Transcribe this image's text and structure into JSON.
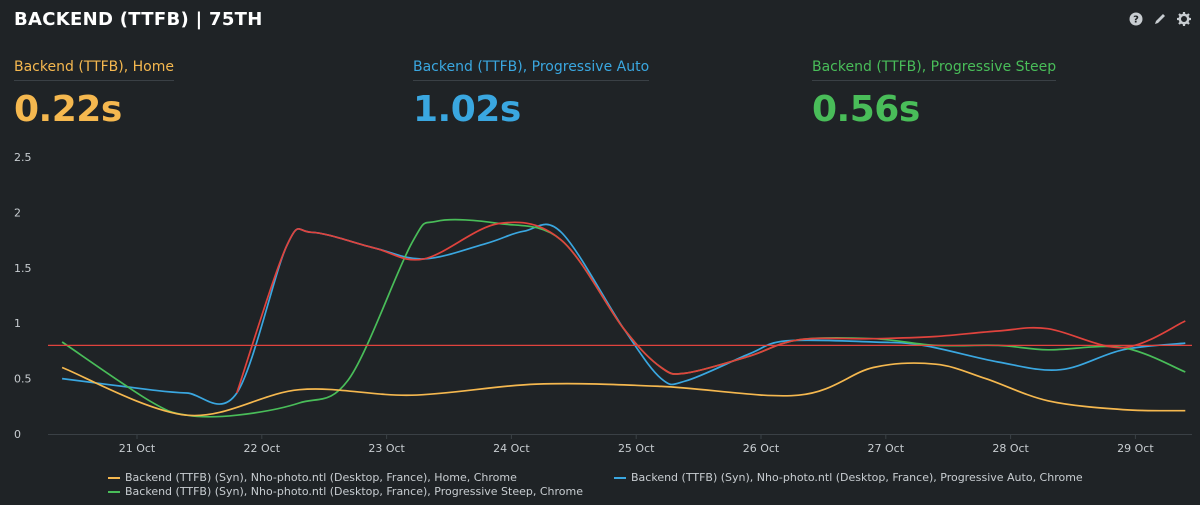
{
  "header": {
    "title": "BACKEND (TTFB) | 75TH",
    "icons": [
      "help-icon",
      "pencil-icon",
      "gear-icon"
    ]
  },
  "metrics": [
    {
      "label": "Backend (TTFB), Home",
      "value": "0.22s",
      "color": "#f5b84f"
    },
    {
      "label": "Backend (TTFB), Progressive Auto",
      "value": "1.02s",
      "color": "#3aa7e0"
    },
    {
      "label": "Backend (TTFB), Progressive Steep",
      "value": "0.56s",
      "color": "#49bd59"
    }
  ],
  "chart_data": {
    "type": "line",
    "x": [
      "21 Oct",
      "22 Oct",
      "23 Oct",
      "24 Oct",
      "25 Oct",
      "26 Oct",
      "27 Oct",
      "28 Oct",
      "29 Oct"
    ],
    "ylim": [
      0,
      2.5
    ],
    "yticks": [
      "0",
      "0.5",
      "1",
      "1.5",
      "2",
      "2.5"
    ],
    "threshold": {
      "value": 0.8,
      "color": "#e0433d"
    },
    "grid": false,
    "legend_position": "bottom",
    "series": [
      {
        "name": "Backend (TTFB) (Syn), Nho-photo.ntl (Desktop, France), Home, Chrome",
        "color": "#f5b84f",
        "points": [
          [
            20.4,
            0.6
          ],
          [
            21.4,
            0.17
          ],
          [
            22.3,
            0.4
          ],
          [
            23.2,
            0.35
          ],
          [
            24.2,
            0.45
          ],
          [
            25.2,
            0.43
          ],
          [
            26.3,
            0.35
          ],
          [
            26.9,
            0.6
          ],
          [
            27.4,
            0.63
          ],
          [
            27.8,
            0.5
          ],
          [
            28.3,
            0.3
          ],
          [
            28.9,
            0.22
          ],
          [
            29.4,
            0.21
          ]
        ]
      },
      {
        "name": "Backend (TTFB) (Syn), Nho-photo.ntl (Desktop, France), Progressive Auto, Chrome",
        "color": "#3aa7e0",
        "points": [
          [
            20.4,
            0.5
          ],
          [
            21.1,
            0.4
          ],
          [
            21.4,
            0.37
          ],
          [
            21.8,
            0.37
          ],
          [
            22.2,
            1.7
          ],
          [
            22.4,
            1.82
          ],
          [
            22.9,
            1.68
          ],
          [
            23.3,
            1.58
          ],
          [
            23.8,
            1.72
          ],
          [
            24.1,
            1.83
          ],
          [
            24.4,
            1.82
          ],
          [
            24.9,
            0.95
          ],
          [
            25.2,
            0.5
          ],
          [
            25.4,
            0.48
          ],
          [
            25.9,
            0.72
          ],
          [
            26.2,
            0.84
          ],
          [
            26.9,
            0.83
          ],
          [
            27.3,
            0.8
          ],
          [
            27.9,
            0.65
          ],
          [
            28.4,
            0.58
          ],
          [
            28.9,
            0.76
          ],
          [
            29.4,
            0.82
          ]
        ]
      },
      {
        "name": "Backend (TTFB) (Syn), Nho-photo.ntl (Desktop, France), Progressive Steep, Chrome",
        "color": "#49bd59",
        "points": [
          [
            20.4,
            0.83
          ],
          [
            21.1,
            0.3
          ],
          [
            21.4,
            0.17
          ],
          [
            21.8,
            0.17
          ],
          [
            22.3,
            0.28
          ],
          [
            22.7,
            0.5
          ],
          [
            23.2,
            1.72
          ],
          [
            23.4,
            1.92
          ],
          [
            23.9,
            1.9
          ],
          [
            24.4,
            1.75
          ],
          [
            24.9,
            0.95
          ],
          [
            25.2,
            0.6
          ],
          [
            25.4,
            0.55
          ],
          [
            25.9,
            0.7
          ],
          [
            26.3,
            0.85
          ],
          [
            26.9,
            0.86
          ],
          [
            27.4,
            0.8
          ],
          [
            27.9,
            0.8
          ],
          [
            28.3,
            0.76
          ],
          [
            28.9,
            0.78
          ],
          [
            29.4,
            0.56
          ]
        ]
      },
      {
        "name": "",
        "color": "#e0433d",
        "points": [
          [
            21.8,
            0.37
          ],
          [
            22.2,
            1.7
          ],
          [
            22.4,
            1.82
          ],
          [
            22.9,
            1.68
          ],
          [
            23.3,
            1.58
          ],
          [
            23.9,
            1.9
          ],
          [
            24.4,
            1.75
          ],
          [
            24.9,
            0.95
          ],
          [
            25.2,
            0.6
          ],
          [
            25.4,
            0.55
          ],
          [
            25.9,
            0.7
          ],
          [
            26.3,
            0.85
          ],
          [
            26.9,
            0.86
          ],
          [
            27.4,
            0.88
          ],
          [
            27.9,
            0.93
          ],
          [
            28.3,
            0.95
          ],
          [
            28.9,
            0.78
          ],
          [
            29.4,
            1.02
          ]
        ]
      }
    ]
  },
  "legend": [
    {
      "label": "Backend (TTFB) (Syn), Nho-photo.ntl (Desktop, France), Home, Chrome",
      "color": "#f5b84f"
    },
    {
      "label": "Backend (TTFB) (Syn), Nho-photo.ntl (Desktop, France), Progressive Auto, Chrome",
      "color": "#3aa7e0"
    },
    {
      "label": "Backend (TTFB) (Syn), Nho-photo.ntl (Desktop, France), Progressive Steep, Chrome",
      "color": "#49bd59"
    }
  ]
}
